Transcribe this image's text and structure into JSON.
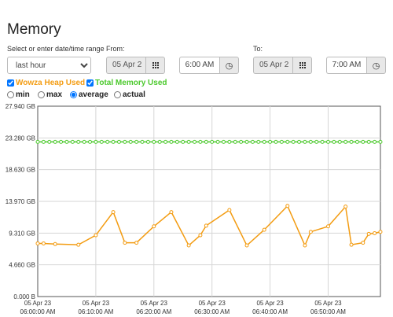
{
  "page": {
    "title": "Memory"
  },
  "controls": {
    "range_label": "Select or enter date/time range",
    "range_value": "last hour",
    "from_label": "From:",
    "from_date": "05 Apr 2",
    "from_time": "6:00 AM",
    "to_label": "To:",
    "to_date": "05 Apr 2",
    "to_time": "7:00 AM"
  },
  "legend": {
    "heap_label": "Wowza Heap Used",
    "heap_color": "#f39c12",
    "total_label": "Total Memory Used",
    "total_color": "#4cc92d"
  },
  "aggregation": {
    "options": [
      "min",
      "max",
      "average",
      "actual"
    ],
    "selected": "average"
  },
  "chart_data": {
    "type": "line",
    "y_ticks": [
      "27.940 GB",
      "23.280 GB",
      "18.630 GB",
      "13.970 GB",
      "9.310 GB",
      "4.660 GB",
      "0.000 B"
    ],
    "ylim": [
      0,
      27.94
    ],
    "y_unit": "GB",
    "x_ticks": [
      {
        "date": "05 Apr 23",
        "time": "06:00:00 AM"
      },
      {
        "date": "05 Apr 23",
        "time": "06:10:00 AM"
      },
      {
        "date": "05 Apr 23",
        "time": "06:20:00 AM"
      },
      {
        "date": "05 Apr 23",
        "time": "06:30:00 AM"
      },
      {
        "date": "05 Apr 23",
        "time": "06:40:00 AM"
      },
      {
        "date": "05 Apr 23",
        "time": "06:50:00 AM"
      }
    ],
    "xlim_minutes": [
      0,
      59
    ],
    "grid": true,
    "series": [
      {
        "name": "Wowza Heap Used",
        "color": "#f39c12",
        "x": [
          0,
          1,
          3,
          7,
          10,
          13,
          15,
          17,
          20,
          23,
          26,
          28,
          29,
          33,
          36,
          39,
          43,
          46,
          47,
          50,
          53,
          54,
          56,
          57,
          58,
          59
        ],
        "values": [
          7.8,
          7.8,
          7.7,
          7.6,
          9.0,
          12.4,
          7.9,
          7.9,
          10.3,
          12.4,
          7.5,
          9.0,
          10.4,
          12.7,
          7.5,
          9.8,
          13.3,
          7.5,
          9.5,
          10.3,
          13.2,
          7.6,
          7.9,
          9.2,
          9.3,
          9.5
        ]
      },
      {
        "name": "Total Memory Used",
        "color": "#4cc92d",
        "constant_value": 22.7,
        "point_count": 60
      }
    ]
  }
}
